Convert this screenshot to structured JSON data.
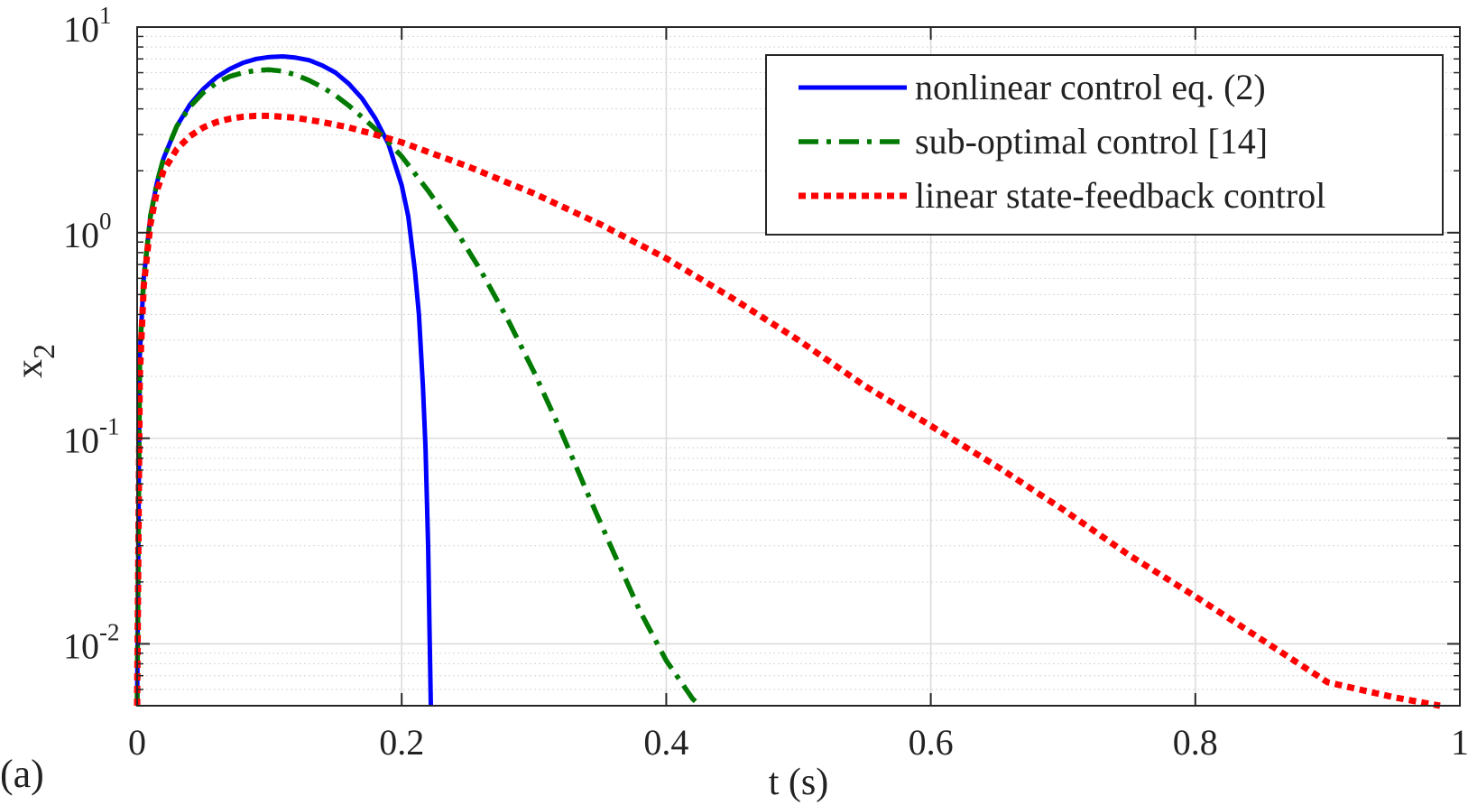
{
  "panel_label": "(a)",
  "chart_data": {
    "type": "line",
    "title": "",
    "xlabel": "t (s)",
    "ylabel": "x",
    "ylabel_subscript": "2",
    "xlim": [
      0,
      1
    ],
    "ylim": [
      0.005,
      10
    ],
    "yscale": "log",
    "grid": true,
    "legend_position": "top-right",
    "x_ticks": [
      {
        "value": 0,
        "label": "0"
      },
      {
        "value": 0.2,
        "label": "0.2"
      },
      {
        "value": 0.4,
        "label": "0.4"
      },
      {
        "value": 0.6,
        "label": "0.6"
      },
      {
        "value": 0.8,
        "label": "0.8"
      },
      {
        "value": 1,
        "label": "1"
      }
    ],
    "y_ticks": [
      {
        "value": 0.01,
        "base": "10",
        "exp": "-2"
      },
      {
        "value": 0.1,
        "base": "10",
        "exp": "-1"
      },
      {
        "value": 1,
        "base": "10",
        "exp": "0"
      },
      {
        "value": 10,
        "base": "10",
        "exp": "1"
      }
    ],
    "series": [
      {
        "name": "nonlinear control eq. (2)",
        "color": "#0000ff",
        "style": "solid",
        "x": [
          0,
          0.002,
          0.005,
          0.01,
          0.015,
          0.02,
          0.03,
          0.04,
          0.05,
          0.06,
          0.07,
          0.08,
          0.09,
          0.1,
          0.11,
          0.12,
          0.13,
          0.14,
          0.15,
          0.16,
          0.17,
          0.18,
          0.19,
          0.2,
          0.205,
          0.21,
          0.213,
          0.216,
          0.218,
          0.22,
          0.221,
          0.222
        ],
        "y": [
          0.005,
          0.25,
          0.6,
          1.2,
          1.75,
          2.3,
          3.3,
          4.2,
          5.0,
          5.7,
          6.25,
          6.7,
          7.0,
          7.15,
          7.2,
          7.1,
          6.9,
          6.5,
          6.0,
          5.3,
          4.5,
          3.6,
          2.7,
          1.7,
          1.2,
          0.65,
          0.4,
          0.18,
          0.09,
          0.03,
          0.012,
          0.005
        ]
      },
      {
        "name": "sub-optimal control [14]",
        "color": "#007a00",
        "style": "dashdot",
        "x": [
          0,
          0.002,
          0.005,
          0.01,
          0.015,
          0.02,
          0.03,
          0.04,
          0.05,
          0.06,
          0.07,
          0.08,
          0.09,
          0.1,
          0.11,
          0.12,
          0.13,
          0.14,
          0.15,
          0.16,
          0.17,
          0.18,
          0.19,
          0.2,
          0.22,
          0.24,
          0.26,
          0.28,
          0.3,
          0.32,
          0.34,
          0.36,
          0.38,
          0.4,
          0.42,
          0.426
        ],
        "y": [
          0.005,
          0.25,
          0.6,
          1.2,
          1.75,
          2.3,
          3.3,
          4.1,
          4.8,
          5.35,
          5.75,
          6.0,
          6.15,
          6.2,
          6.1,
          5.85,
          5.5,
          5.1,
          4.65,
          4.15,
          3.65,
          3.2,
          2.75,
          2.35,
          1.6,
          1.05,
          0.65,
          0.38,
          0.21,
          0.11,
          0.055,
          0.028,
          0.0145,
          0.0083,
          0.0054,
          0.005
        ]
      },
      {
        "name": "linear state-feedback control",
        "color": "#ff0000",
        "style": "dotted",
        "x": [
          0,
          0.002,
          0.005,
          0.01,
          0.015,
          0.02,
          0.03,
          0.04,
          0.05,
          0.06,
          0.07,
          0.08,
          0.09,
          0.1,
          0.12,
          0.14,
          0.16,
          0.18,
          0.2,
          0.25,
          0.3,
          0.35,
          0.4,
          0.45,
          0.5,
          0.55,
          0.6,
          0.65,
          0.7,
          0.75,
          0.8,
          0.85,
          0.9,
          0.95,
          0.985
        ],
        "y": [
          0.005,
          0.2,
          0.55,
          1.1,
          1.6,
          2.0,
          2.55,
          2.95,
          3.25,
          3.45,
          3.58,
          3.66,
          3.7,
          3.7,
          3.62,
          3.45,
          3.25,
          3.0,
          2.75,
          2.1,
          1.55,
          1.1,
          0.75,
          0.48,
          0.3,
          0.18,
          0.115,
          0.073,
          0.045,
          0.027,
          0.017,
          0.0105,
          0.0065,
          0.0055,
          0.005
        ]
      }
    ]
  }
}
